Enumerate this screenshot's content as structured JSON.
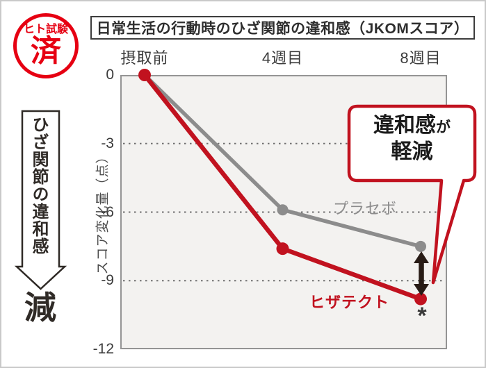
{
  "badge": {
    "top_text": "ヒト試験",
    "main_text": "済"
  },
  "left_banner": {
    "arrow_text": "ひざ関節の違和感",
    "result_text": "減"
  },
  "chart_data": {
    "type": "line",
    "title": "日常生活の行動時のひざ関節の違和感（JKOMスコア）",
    "categories": [
      "摂取前",
      "4週目",
      "8週目"
    ],
    "series": [
      {
        "name": "プラセボ",
        "color": "#8c8c8c",
        "values": [
          0,
          -5.9,
          -7.5
        ]
      },
      {
        "name": "ヒザテクト",
        "color": "#c1121f",
        "values": [
          0,
          -7.6,
          -9.8
        ]
      }
    ],
    "ylabel": "スコア変化量（点）",
    "yticks": [
      0,
      -3,
      -6,
      -9,
      -12
    ],
    "ylim": [
      0,
      -12
    ],
    "grid": "horizontal dotted gridlines at -3, -6, -9",
    "legend_position": "inline labels beside lines",
    "significance_marker": "*"
  },
  "callout": {
    "line1_main": "違和感",
    "line1_particle": "が",
    "line2": "軽減",
    "border_color": "#c1121f"
  },
  "colors": {
    "badge_red": "#e60012",
    "accent_red": "#c1121f",
    "placebo_gray": "#8c8c8c",
    "arrow_black": "#281c16",
    "plot_background": "#f3f2f0"
  }
}
